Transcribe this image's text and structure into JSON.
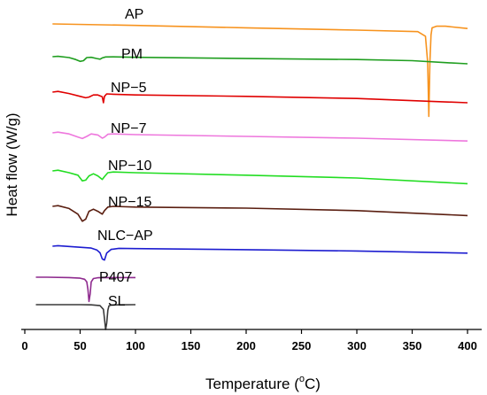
{
  "chart_data": {
    "type": "line",
    "xlabel": "Temperature (",
    "xlabel_sup": "o",
    "xlabel_suffix": "C)",
    "ylabel": "Heat flow (W/g)",
    "xlim": [
      0,
      400
    ],
    "x_ticks": [
      "0",
      "50",
      "100",
      "150",
      "200",
      "250",
      "300",
      "350",
      "400"
    ],
    "y_ticks_shown": false,
    "grid": false,
    "legend": "none",
    "series": [
      {
        "name": "AP",
        "color": "#f7931e",
        "x": [
          25,
          100,
          200,
          300,
          355,
          362,
          364,
          365,
          366,
          367,
          368,
          372,
          380,
          400
        ],
        "y": [
          0.0,
          -0.2,
          -0.5,
          -0.8,
          -1.0,
          -1.6,
          -5.0,
          -12.0,
          -5.0,
          -1.4,
          -0.5,
          -0.3,
          -0.3,
          -0.6
        ]
      },
      {
        "name": "PM",
        "color": "#1f9e1f",
        "x": [
          25,
          30,
          40,
          46,
          50,
          53,
          56,
          60,
          65,
          68,
          70,
          73,
          80,
          100,
          200,
          300,
          350,
          380,
          400
        ],
        "y": [
          0.0,
          0.1,
          -0.3,
          -0.9,
          -1.5,
          -1.3,
          -0.3,
          -0.2,
          -0.6,
          -0.8,
          -0.4,
          -0.1,
          -0.05,
          -0.2,
          -0.6,
          -0.9,
          -1.3,
          -1.9,
          -2.3
        ]
      },
      {
        "name": "NP−5",
        "color": "#e00000",
        "x": [
          25,
          30,
          40,
          50,
          55,
          58,
          62,
          66,
          70,
          71,
          72,
          74,
          80,
          100,
          200,
          300,
          400
        ],
        "y": [
          0.0,
          0.2,
          -0.4,
          -1.2,
          -1.6,
          -1.4,
          -0.8,
          -0.8,
          -1.3,
          -3.0,
          -1.2,
          -0.5,
          -0.6,
          -0.8,
          -1.2,
          -1.8,
          -3.0
        ]
      },
      {
        "name": "NP−7",
        "color": "#ee77dd",
        "x": [
          25,
          30,
          40,
          48,
          52,
          56,
          60,
          66,
          70,
          72,
          75,
          80,
          100,
          200,
          300,
          400
        ],
        "y": [
          0.0,
          0.2,
          -0.3,
          -1.2,
          -1.6,
          -1.0,
          -0.3,
          -0.6,
          -1.5,
          -1.2,
          -0.4,
          -0.3,
          -0.5,
          -1.0,
          -1.5,
          -2.3
        ]
      },
      {
        "name": "NP−10",
        "color": "#22dd22",
        "x": [
          25,
          30,
          40,
          48,
          52,
          55,
          58,
          62,
          66,
          70,
          72,
          75,
          80,
          100,
          200,
          300,
          400
        ],
        "y": [
          0.0,
          0.2,
          -0.5,
          -1.2,
          -2.8,
          -2.6,
          -1.4,
          -0.8,
          -1.4,
          -2.4,
          -1.6,
          -0.5,
          -0.3,
          -0.5,
          -1.2,
          -2.0,
          -3.6
        ]
      },
      {
        "name": "NP−15",
        "color": "#5a1e10",
        "x": [
          25,
          30,
          40,
          48,
          52,
          55,
          58,
          62,
          66,
          70,
          72,
          75,
          80,
          100,
          200,
          300,
          400
        ],
        "y": [
          0.0,
          0.2,
          -0.6,
          -2.2,
          -4.2,
          -3.6,
          -1.4,
          -0.8,
          -1.4,
          -2.2,
          -1.2,
          -0.2,
          0.0,
          -0.2,
          -0.5,
          -1.2,
          -2.6
        ]
      },
      {
        "name": "NLC−AP",
        "color": "#1c1cd0",
        "x": [
          25,
          30,
          40,
          50,
          60,
          65,
          68,
          70,
          72,
          74,
          78,
          85,
          100,
          200,
          300,
          400
        ],
        "y": [
          0.0,
          0.2,
          -0.1,
          -0.4,
          -0.7,
          -1.4,
          -2.5,
          -4.8,
          -5.2,
          -2.6,
          -1.2,
          -0.8,
          -0.9,
          -1.3,
          -1.8,
          -2.6
        ]
      },
      {
        "name": "P407",
        "color": "#8e2a8e",
        "x": [
          10,
          20,
          40,
          50,
          54,
          56,
          57,
          58,
          59,
          60,
          62,
          66,
          80,
          100
        ],
        "y": [
          0.0,
          0.0,
          -0.1,
          -0.3,
          -0.6,
          -1.4,
          -3.6,
          -7.2,
          -5.0,
          -1.4,
          -0.4,
          -0.15,
          -0.1,
          -0.1
        ]
      },
      {
        "name": "SL",
        "color": "#3a3a3a",
        "x": [
          10,
          30,
          50,
          60,
          68,
          71,
          72,
          73,
          74,
          75,
          76,
          78,
          85,
          100
        ],
        "y": [
          0.0,
          0.0,
          0.0,
          -0.05,
          -0.3,
          -1.5,
          -4.5,
          -8.0,
          -6.0,
          -1.8,
          -0.4,
          -0.15,
          -0.05,
          0.0
        ]
      }
    ]
  }
}
